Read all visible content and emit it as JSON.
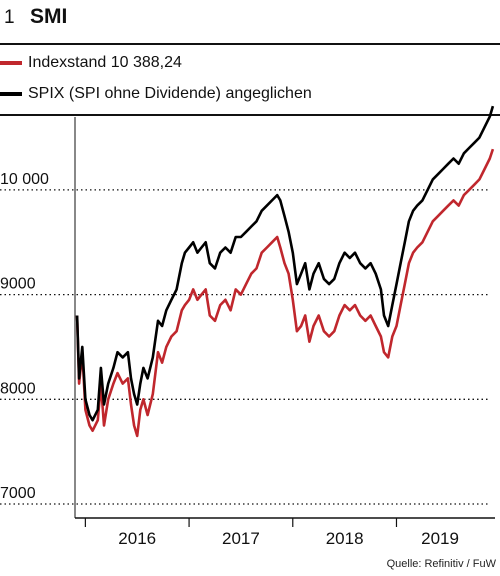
{
  "header": {
    "number": "1",
    "title": "SMI"
  },
  "source": "Quelle: Refinitiv / FuW",
  "chart_data": {
    "type": "line",
    "title": "SMI",
    "xlabel": "",
    "ylabel": "",
    "x_ticks": [
      "2016",
      "2017",
      "2018",
      "2019"
    ],
    "y_ticks": [
      {
        "value": 7000,
        "label": "7000"
      },
      {
        "value": 8000,
        "label": "8000"
      },
      {
        "value": 9000,
        "label": "9000"
      },
      {
        "value": 10000,
        "label": "10 000"
      }
    ],
    "ylim": [
      7000,
      11000
    ],
    "xlim": [
      2015.9,
      2019.95
    ],
    "grid": "horizontal dotted",
    "legend_position": "top",
    "series": [
      {
        "name": "Indexstand 10 388,24",
        "color": "#c0272d",
        "points": [
          [
            2015.92,
            8800
          ],
          [
            2015.94,
            8150
          ],
          [
            2015.97,
            8450
          ],
          [
            2016.0,
            7900
          ],
          [
            2016.04,
            7750
          ],
          [
            2016.07,
            7700
          ],
          [
            2016.12,
            7800
          ],
          [
            2016.15,
            8150
          ],
          [
            2016.18,
            7750
          ],
          [
            2016.22,
            8000
          ],
          [
            2016.27,
            8150
          ],
          [
            2016.31,
            8250
          ],
          [
            2016.36,
            8150
          ],
          [
            2016.41,
            8200
          ],
          [
            2016.44,
            7950
          ],
          [
            2016.47,
            7750
          ],
          [
            2016.5,
            7650
          ],
          [
            2016.53,
            7900
          ],
          [
            2016.56,
            8000
          ],
          [
            2016.6,
            7850
          ],
          [
            2016.65,
            8050
          ],
          [
            2016.7,
            8450
          ],
          [
            2016.74,
            8350
          ],
          [
            2016.78,
            8500
          ],
          [
            2016.83,
            8600
          ],
          [
            2016.88,
            8650
          ],
          [
            2016.93,
            8850
          ],
          [
            2016.96,
            8900
          ],
          [
            2017.0,
            8950
          ],
          [
            2017.04,
            9050
          ],
          [
            2017.08,
            8950
          ],
          [
            2017.12,
            9000
          ],
          [
            2017.16,
            9050
          ],
          [
            2017.2,
            8800
          ],
          [
            2017.25,
            8750
          ],
          [
            2017.3,
            8900
          ],
          [
            2017.35,
            8950
          ],
          [
            2017.4,
            8850
          ],
          [
            2017.45,
            9050
          ],
          [
            2017.5,
            9000
          ],
          [
            2017.55,
            9100
          ],
          [
            2017.6,
            9200
          ],
          [
            2017.65,
            9250
          ],
          [
            2017.7,
            9400
          ],
          [
            2017.75,
            9450
          ],
          [
            2017.8,
            9500
          ],
          [
            2017.85,
            9550
          ],
          [
            2017.88,
            9450
          ],
          [
            2017.92,
            9300
          ],
          [
            2017.96,
            9200
          ],
          [
            2018.0,
            8950
          ],
          [
            2018.04,
            8650
          ],
          [
            2018.08,
            8700
          ],
          [
            2018.12,
            8800
          ],
          [
            2018.16,
            8550
          ],
          [
            2018.2,
            8700
          ],
          [
            2018.25,
            8800
          ],
          [
            2018.3,
            8650
          ],
          [
            2018.35,
            8600
          ],
          [
            2018.4,
            8650
          ],
          [
            2018.45,
            8800
          ],
          [
            2018.5,
            8900
          ],
          [
            2018.55,
            8850
          ],
          [
            2018.6,
            8900
          ],
          [
            2018.65,
            8800
          ],
          [
            2018.7,
            8750
          ],
          [
            2018.75,
            8800
          ],
          [
            2018.8,
            8700
          ],
          [
            2018.85,
            8600
          ],
          [
            2018.88,
            8450
          ],
          [
            2018.92,
            8400
          ],
          [
            2018.96,
            8600
          ],
          [
            2019.0,
            8700
          ],
          [
            2019.04,
            8900
          ],
          [
            2019.08,
            9100
          ],
          [
            2019.12,
            9300
          ],
          [
            2019.16,
            9400
          ],
          [
            2019.2,
            9450
          ],
          [
            2019.25,
            9500
          ],
          [
            2019.3,
            9600
          ],
          [
            2019.35,
            9700
          ],
          [
            2019.4,
            9750
          ],
          [
            2019.45,
            9800
          ],
          [
            2019.5,
            9850
          ],
          [
            2019.55,
            9900
          ],
          [
            2019.6,
            9850
          ],
          [
            2019.65,
            9950
          ],
          [
            2019.7,
            10000
          ],
          [
            2019.75,
            10050
          ],
          [
            2019.8,
            10100
          ],
          [
            2019.85,
            10200
          ],
          [
            2019.9,
            10300
          ],
          [
            2019.93,
            10390
          ]
        ]
      },
      {
        "name": "SPIX (SPI ohne Dividende) angeglichen",
        "color": "#000000",
        "points": [
          [
            2015.92,
            8800
          ],
          [
            2015.94,
            8200
          ],
          [
            2015.97,
            8500
          ],
          [
            2016.0,
            8000
          ],
          [
            2016.04,
            7850
          ],
          [
            2016.07,
            7800
          ],
          [
            2016.12,
            7900
          ],
          [
            2016.15,
            8300
          ],
          [
            2016.18,
            7950
          ],
          [
            2016.22,
            8150
          ],
          [
            2016.27,
            8300
          ],
          [
            2016.31,
            8450
          ],
          [
            2016.36,
            8400
          ],
          [
            2016.41,
            8450
          ],
          [
            2016.44,
            8200
          ],
          [
            2016.47,
            8050
          ],
          [
            2016.5,
            7950
          ],
          [
            2016.53,
            8150
          ],
          [
            2016.56,
            8300
          ],
          [
            2016.6,
            8200
          ],
          [
            2016.65,
            8400
          ],
          [
            2016.7,
            8750
          ],
          [
            2016.74,
            8700
          ],
          [
            2016.78,
            8850
          ],
          [
            2016.83,
            8950
          ],
          [
            2016.88,
            9050
          ],
          [
            2016.93,
            9300
          ],
          [
            2016.96,
            9400
          ],
          [
            2017.0,
            9450
          ],
          [
            2017.04,
            9500
          ],
          [
            2017.08,
            9400
          ],
          [
            2017.12,
            9450
          ],
          [
            2017.16,
            9500
          ],
          [
            2017.2,
            9300
          ],
          [
            2017.25,
            9250
          ],
          [
            2017.3,
            9400
          ],
          [
            2017.35,
            9450
          ],
          [
            2017.4,
            9400
          ],
          [
            2017.45,
            9550
          ],
          [
            2017.5,
            9550
          ],
          [
            2017.55,
            9600
          ],
          [
            2017.6,
            9650
          ],
          [
            2017.65,
            9700
          ],
          [
            2017.7,
            9800
          ],
          [
            2017.75,
            9850
          ],
          [
            2017.8,
            9900
          ],
          [
            2017.85,
            9950
          ],
          [
            2017.88,
            9900
          ],
          [
            2017.92,
            9750
          ],
          [
            2017.96,
            9600
          ],
          [
            2018.0,
            9400
          ],
          [
            2018.04,
            9100
          ],
          [
            2018.08,
            9200
          ],
          [
            2018.12,
            9300
          ],
          [
            2018.16,
            9050
          ],
          [
            2018.2,
            9200
          ],
          [
            2018.25,
            9300
          ],
          [
            2018.3,
            9150
          ],
          [
            2018.35,
            9100
          ],
          [
            2018.4,
            9150
          ],
          [
            2018.45,
            9300
          ],
          [
            2018.5,
            9400
          ],
          [
            2018.55,
            9350
          ],
          [
            2018.6,
            9400
          ],
          [
            2018.65,
            9300
          ],
          [
            2018.7,
            9250
          ],
          [
            2018.75,
            9300
          ],
          [
            2018.8,
            9200
          ],
          [
            2018.85,
            9050
          ],
          [
            2018.88,
            8800
          ],
          [
            2018.92,
            8700
          ],
          [
            2018.96,
            8900
          ],
          [
            2019.0,
            9100
          ],
          [
            2019.04,
            9300
          ],
          [
            2019.08,
            9500
          ],
          [
            2019.12,
            9700
          ],
          [
            2019.16,
            9800
          ],
          [
            2019.2,
            9850
          ],
          [
            2019.25,
            9900
          ],
          [
            2019.3,
            10000
          ],
          [
            2019.35,
            10100
          ],
          [
            2019.4,
            10150
          ],
          [
            2019.45,
            10200
          ],
          [
            2019.5,
            10250
          ],
          [
            2019.55,
            10300
          ],
          [
            2019.6,
            10250
          ],
          [
            2019.65,
            10350
          ],
          [
            2019.7,
            10400
          ],
          [
            2019.75,
            10450
          ],
          [
            2019.8,
            10500
          ],
          [
            2019.85,
            10600
          ],
          [
            2019.9,
            10700
          ],
          [
            2019.93,
            10800
          ]
        ]
      }
    ]
  }
}
